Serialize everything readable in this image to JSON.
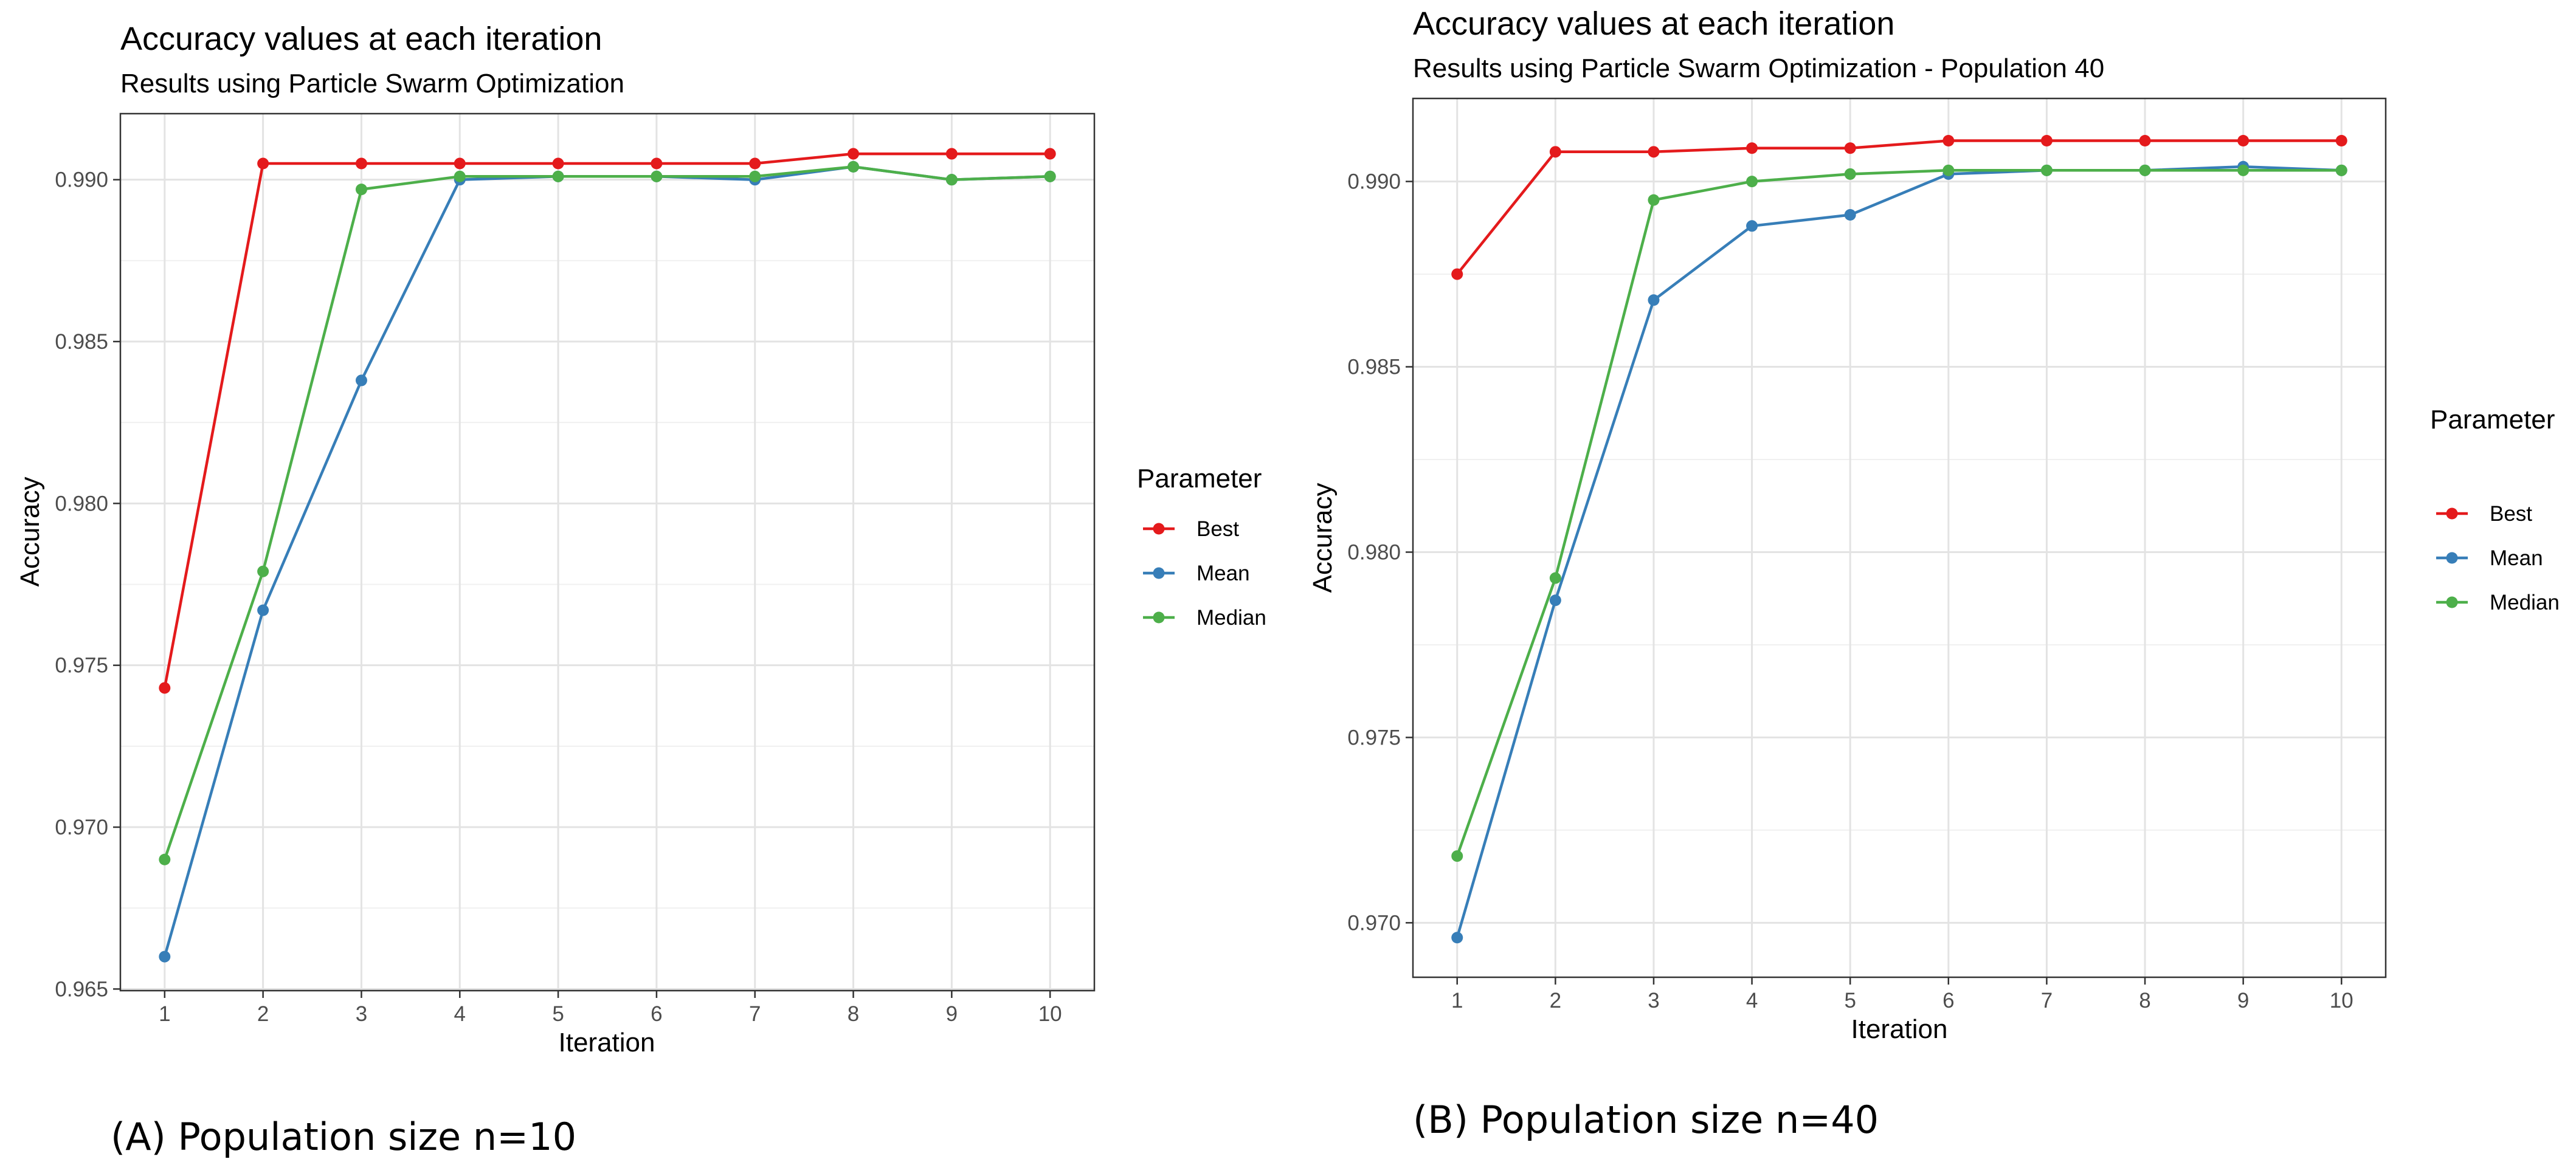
{
  "chart_data": [
    {
      "type": "line",
      "title": "Accuracy values at each iteration",
      "subtitle": "Results using Particle Swarm Optimization",
      "xlabel": "Iteration",
      "ylabel": "Accuracy",
      "x": [
        1,
        2,
        3,
        4,
        5,
        6,
        7,
        8,
        9,
        10
      ],
      "x_ticks": [
        "1",
        "2",
        "3",
        "4",
        "5",
        "6",
        "7",
        "8",
        "9",
        "10"
      ],
      "xlim": [
        0.55,
        10.45
      ],
      "ylim": [
        0.96495,
        0.99204
      ],
      "y_ticks": [
        0.965,
        0.97,
        0.975,
        0.98,
        0.985,
        0.99
      ],
      "y_tick_labels": [
        "0.965",
        "0.970",
        "0.975",
        "0.980",
        "0.985",
        "0.990"
      ],
      "grid": true,
      "legend_title": "Parameter",
      "legend_position": "right",
      "series": [
        {
          "name": "Best",
          "color": "#E41A1C",
          "values": [
            0.9743,
            0.9905,
            0.9905,
            0.9905,
            0.9905,
            0.9905,
            0.9905,
            0.9908,
            0.9908,
            0.9908
          ]
        },
        {
          "name": "Mean",
          "color": "#377EB8",
          "values": [
            0.966,
            0.9767,
            0.9838,
            0.99,
            0.9901,
            0.9901,
            0.99,
            0.9904,
            0.99,
            0.9901
          ]
        },
        {
          "name": "Median",
          "color": "#4DAF4A",
          "values": [
            0.969,
            0.9779,
            0.9897,
            0.9901,
            0.9901,
            0.9901,
            0.9901,
            0.9904,
            0.99,
            0.9901
          ]
        }
      ],
      "caption": "(A) Population size n=10"
    },
    {
      "type": "line",
      "title": "Accuracy values at each iteration",
      "subtitle": "Results using Particle Swarm Optimization - Population 40",
      "xlabel": "Iteration",
      "ylabel": "Accuracy",
      "x": [
        1,
        2,
        3,
        4,
        5,
        6,
        7,
        8,
        9,
        10
      ],
      "x_ticks": [
        "1",
        "2",
        "3",
        "4",
        "5",
        "6",
        "7",
        "8",
        "9",
        "10"
      ],
      "xlim": [
        0.55,
        10.45
      ],
      "ylim": [
        0.96853,
        0.99224
      ],
      "y_ticks": [
        0.97,
        0.975,
        0.98,
        0.985,
        0.99
      ],
      "y_tick_labels": [
        "0.970",
        "0.975",
        "0.980",
        "0.985",
        "0.990"
      ],
      "grid": true,
      "legend_title": "Parameter",
      "legend_position": "right",
      "series": [
        {
          "name": "Best",
          "color": "#E41A1C",
          "values": [
            0.9875,
            0.9908,
            0.9908,
            0.9909,
            0.9909,
            0.9911,
            0.9911,
            0.9911,
            0.9911,
            0.9911
          ]
        },
        {
          "name": "Mean",
          "color": "#377EB8",
          "values": [
            0.9696,
            0.9787,
            0.9868,
            0.9888,
            0.9891,
            0.9902,
            0.9903,
            0.9903,
            0.9904,
            0.9903
          ]
        },
        {
          "name": "Median",
          "color": "#4DAF4A",
          "values": [
            0.9718,
            0.9793,
            0.9895,
            0.99,
            0.9902,
            0.9903,
            0.9903,
            0.9903,
            0.9903,
            0.9903
          ]
        }
      ],
      "caption": "(B) Population size n=40"
    }
  ]
}
